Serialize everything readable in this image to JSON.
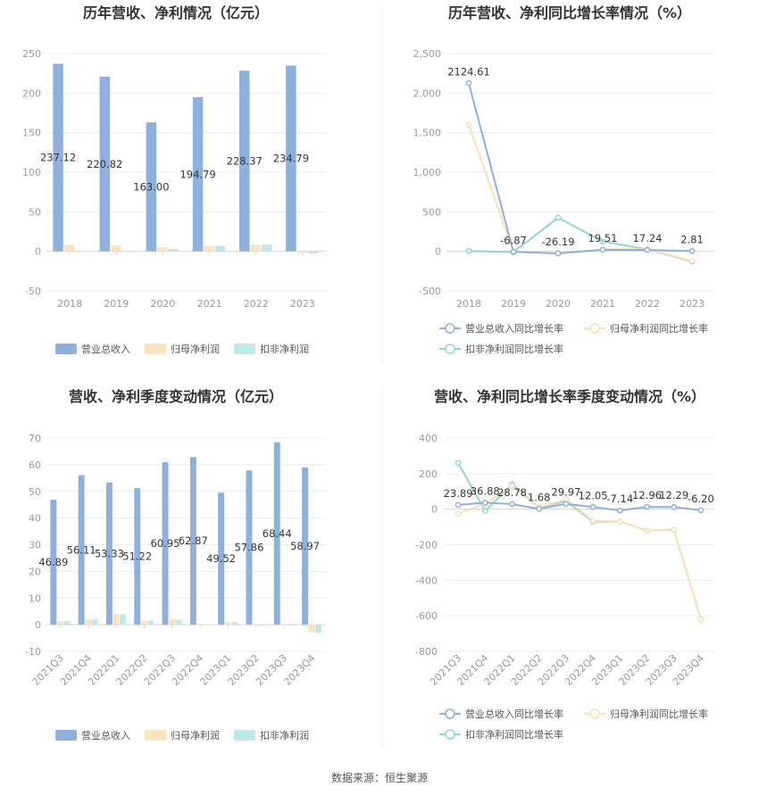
{
  "source": "数据来源：恒生聚源",
  "colors": {
    "revenue": "#8eb0dd",
    "net_profit": "#fde3b9",
    "deducted_profit": "#bfe8ea",
    "rev_growth_line": "#8eb0dd",
    "np_growth_line": "#fce0ae",
    "dp_growth_line": "#8dd5d6"
  },
  "chart_data": [
    {
      "type": "bar",
      "title": "历年营收、净利情况（亿元）",
      "categories": [
        "2018",
        "2019",
        "2020",
        "2021",
        "2022",
        "2023"
      ],
      "ylim": [
        -50,
        250
      ],
      "yticks": [
        "-50",
        "0",
        "50",
        "100",
        "150",
        "200",
        "250"
      ],
      "series": [
        {
          "name": "营业总收入",
          "values": [
            237.12,
            220.82,
            163.0,
            194.79,
            228.37,
            234.79
          ],
          "labels": [
            "237.12",
            "220.82",
            "163.00",
            "194.79",
            "228.37",
            "234.79"
          ]
        },
        {
          "name": "归母净利润",
          "values": [
            8.0,
            7.6,
            5.3,
            6.5,
            8.3,
            -2.0
          ]
        },
        {
          "name": "扣非净利润",
          "values": [
            0.6,
            0.5,
            3.0,
            6.8,
            8.6,
            -2.7
          ]
        }
      ],
      "legend": "bottom"
    },
    {
      "type": "line",
      "title": "历年营收、净利同比增长率情况（%）",
      "categories": [
        "2018",
        "2019",
        "2020",
        "2021",
        "2022",
        "2023"
      ],
      "ylim": [
        -500,
        2500
      ],
      "yticks": [
        "-500",
        "0",
        "500",
        "1,000",
        "1,500",
        "2,000",
        "2,500"
      ],
      "series": [
        {
          "name": "营业总收入同比增长率",
          "values": [
            2124.61,
            -6.87,
            -26.19,
            19.51,
            17.24,
            2.81
          ],
          "labels": [
            "2124.61",
            "-6.87",
            "-26.19",
            "19.51",
            "17.24",
            "2.81"
          ]
        },
        {
          "name": "归母净利润同比增长率",
          "values": [
            1600,
            -5,
            -30,
            22,
            28,
            -120
          ]
        },
        {
          "name": "扣非净利润同比增长率",
          "values": [
            5,
            -10,
            425,
            125,
            25,
            -130
          ]
        }
      ],
      "legend": "bottom"
    },
    {
      "type": "bar",
      "title": "营收、净利季度变动情况（亿元）",
      "categories": [
        "2021Q3",
        "2021Q4",
        "2022Q1",
        "2022Q2",
        "2022Q3",
        "2022Q4",
        "2023Q1",
        "2023Q2",
        "2023Q3",
        "2023Q4"
      ],
      "ylim": [
        -10,
        70
      ],
      "yticks": [
        "-10",
        "0",
        "10",
        "20",
        "30",
        "40",
        "50",
        "60",
        "70"
      ],
      "series": [
        {
          "name": "营业总收入",
          "values": [
            46.89,
            56.11,
            53.33,
            51.22,
            60.95,
            62.87,
            49.52,
            57.86,
            68.44,
            58.97
          ],
          "labels": [
            "46.89",
            "56.11",
            "53.33",
            "51.22",
            "60.95",
            "62.87",
            "49.52",
            "57.86",
            "68.44",
            "58.97"
          ]
        },
        {
          "name": "归母净利润",
          "values": [
            1.2,
            1.9,
            3.9,
            1.4,
            2.0,
            0.3,
            1.0,
            -0.2,
            -0.2,
            -2.9
          ]
        },
        {
          "name": "扣非净利润",
          "values": [
            1.3,
            2.0,
            3.9,
            1.5,
            1.9,
            0.2,
            0.9,
            -0.4,
            -0.3,
            -3.1
          ]
        }
      ],
      "legend": "bottom"
    },
    {
      "type": "line",
      "title": "营收、净利同比增长率季度变动情况（%）",
      "categories": [
        "2021Q3",
        "2021Q4",
        "2022Q1",
        "2022Q2",
        "2022Q3",
        "2022Q4",
        "2023Q1",
        "2023Q2",
        "2023Q3",
        "2023Q4"
      ],
      "ylim": [
        -800,
        400
      ],
      "yticks": [
        "-800",
        "-600",
        "-400",
        "-200",
        "0",
        "200",
        "400"
      ],
      "series": [
        {
          "name": "营业总收入同比增长率",
          "values": [
            23.89,
            36.88,
            28.78,
            1.68,
            29.97,
            12.05,
            -7.14,
            12.96,
            12.29,
            -6.2
          ],
          "labels": [
            "23.89",
            "36.88",
            "28.78",
            "1.68",
            "29.97",
            "12.05",
            "-7.14",
            "12.96",
            "12.29",
            "-6.20"
          ]
        },
        {
          "name": "归母净利润同比增长率",
          "values": [
            -25,
            30,
            130,
            10,
            55,
            -65,
            -70,
            -120,
            -115,
            -620
          ]
        },
        {
          "name": "扣非净利润同比增长率",
          "values": [
            260,
            -10,
            140,
            10,
            45,
            -70,
            -70,
            -120,
            -115,
            -620
          ]
        }
      ],
      "legend": "bottom"
    }
  ]
}
